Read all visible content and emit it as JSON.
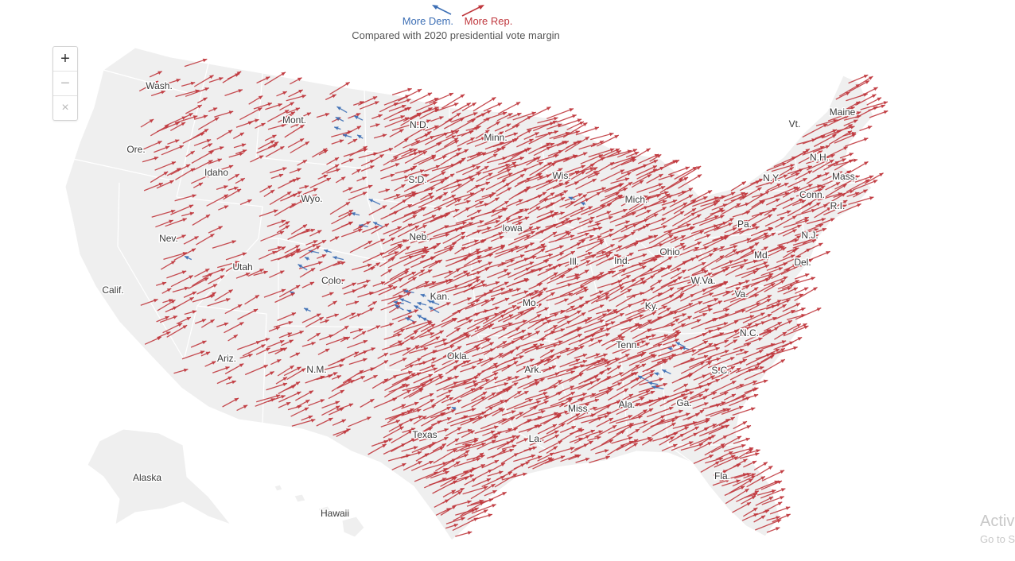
{
  "legend": {
    "dem_label": "More Dem.",
    "rep_label": "More Rep.",
    "subtitle": "Compared with 2020 presidential vote margin"
  },
  "zoom": {
    "zoom_in": "+",
    "zoom_out": "−",
    "reset": "×"
  },
  "colors": {
    "dem": "#3d6fb5",
    "rep": "#c0383e",
    "land": "#efefef",
    "border": "#ffffff"
  },
  "states": [
    "Wash.",
    "Ore.",
    "Calif.",
    "Idaho",
    "Nev.",
    "Mont.",
    "Wyo.",
    "Utah",
    "Ariz.",
    "Colo.",
    "N.M.",
    "N.D.",
    "S.D.",
    "Neb.",
    "Kan.",
    "Okla.",
    "Texas",
    "Minn.",
    "Iowa",
    "Mo.",
    "Ark.",
    "La.",
    "Wis.",
    "Ill.",
    "Mich.",
    "Ind.",
    "Ohio",
    "Ky.",
    "Tenn.",
    "Miss.",
    "Ala.",
    "Ga.",
    "Fla.",
    "S.C.",
    "N.C.",
    "Va.",
    "W.Va.",
    "Pa.",
    "N.Y.",
    "Vt.",
    "N.H.",
    "Maine",
    "Mass.",
    "Conn.",
    "R.I.",
    "N.J.",
    "Del.",
    "Md.",
    "Alaska",
    "Hawaii"
  ],
  "watermark": {
    "line1": "Activ",
    "line2": "Go to S"
  }
}
